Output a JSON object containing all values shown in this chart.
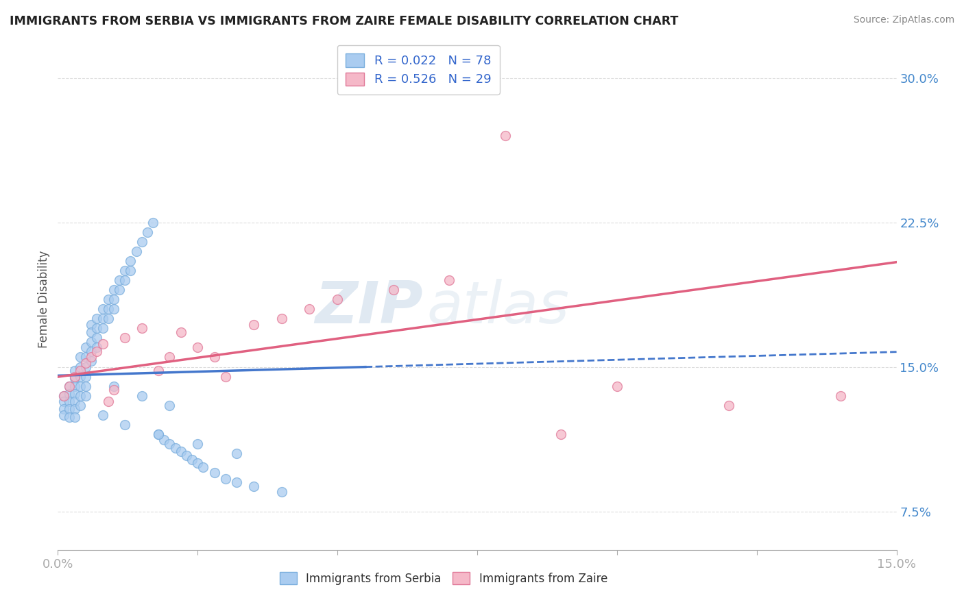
{
  "title": "IMMIGRANTS FROM SERBIA VS IMMIGRANTS FROM ZAIRE FEMALE DISABILITY CORRELATION CHART",
  "source_text": "Source: ZipAtlas.com",
  "ylabel": "Female Disability",
  "watermark_zip": "ZIP",
  "watermark_atlas": "atlas",
  "xlim": [
    0.0,
    0.15
  ],
  "ylim": [
    0.055,
    0.315
  ],
  "ytick_positions": [
    0.075,
    0.15,
    0.225,
    0.3
  ],
  "ytick_labels": [
    "7.5%",
    "15.0%",
    "22.5%",
    "30.0%"
  ],
  "serbia_color": "#aaccf0",
  "serbia_edge": "#7aaedd",
  "zaire_color": "#f5b8c8",
  "zaire_edge": "#e07898",
  "serbia_line_color": "#4477cc",
  "zaire_line_color": "#e06080",
  "serbia_R": 0.022,
  "serbia_N": 78,
  "zaire_R": 0.526,
  "zaire_N": 29,
  "serbia_scatter_x": [
    0.001,
    0.001,
    0.001,
    0.001,
    0.002,
    0.002,
    0.002,
    0.002,
    0.002,
    0.003,
    0.003,
    0.003,
    0.003,
    0.003,
    0.003,
    0.003,
    0.004,
    0.004,
    0.004,
    0.004,
    0.004,
    0.004,
    0.005,
    0.005,
    0.005,
    0.005,
    0.005,
    0.005,
    0.006,
    0.006,
    0.006,
    0.006,
    0.006,
    0.007,
    0.007,
    0.007,
    0.007,
    0.008,
    0.008,
    0.008,
    0.009,
    0.009,
    0.009,
    0.01,
    0.01,
    0.01,
    0.011,
    0.011,
    0.012,
    0.012,
    0.013,
    0.013,
    0.014,
    0.015,
    0.016,
    0.017,
    0.018,
    0.019,
    0.02,
    0.021,
    0.022,
    0.023,
    0.024,
    0.025,
    0.026,
    0.028,
    0.03,
    0.032,
    0.035,
    0.04,
    0.01,
    0.015,
    0.02,
    0.008,
    0.012,
    0.018,
    0.025,
    0.032
  ],
  "serbia_scatter_y": [
    0.135,
    0.132,
    0.128,
    0.125,
    0.14,
    0.136,
    0.132,
    0.128,
    0.124,
    0.148,
    0.144,
    0.14,
    0.136,
    0.132,
    0.128,
    0.124,
    0.155,
    0.15,
    0.145,
    0.14,
    0.135,
    0.13,
    0.16,
    0.155,
    0.15,
    0.145,
    0.14,
    0.135,
    0.172,
    0.168,
    0.163,
    0.158,
    0.153,
    0.175,
    0.17,
    0.165,
    0.16,
    0.18,
    0.175,
    0.17,
    0.185,
    0.18,
    0.175,
    0.19,
    0.185,
    0.18,
    0.195,
    0.19,
    0.2,
    0.195,
    0.205,
    0.2,
    0.21,
    0.215,
    0.22,
    0.225,
    0.115,
    0.112,
    0.11,
    0.108,
    0.106,
    0.104,
    0.102,
    0.1,
    0.098,
    0.095,
    0.092,
    0.09,
    0.088,
    0.085,
    0.14,
    0.135,
    0.13,
    0.125,
    0.12,
    0.115,
    0.11,
    0.105
  ],
  "zaire_scatter_x": [
    0.001,
    0.002,
    0.003,
    0.004,
    0.005,
    0.006,
    0.007,
    0.008,
    0.009,
    0.01,
    0.012,
    0.015,
    0.018,
    0.02,
    0.022,
    0.025,
    0.028,
    0.03,
    0.035,
    0.04,
    0.045,
    0.05,
    0.06,
    0.07,
    0.08,
    0.09,
    0.1,
    0.12,
    0.14
  ],
  "zaire_scatter_y": [
    0.135,
    0.14,
    0.145,
    0.148,
    0.152,
    0.155,
    0.158,
    0.162,
    0.132,
    0.138,
    0.165,
    0.17,
    0.148,
    0.155,
    0.168,
    0.16,
    0.155,
    0.145,
    0.172,
    0.175,
    0.18,
    0.185,
    0.19,
    0.195,
    0.27,
    0.115,
    0.14,
    0.13,
    0.135
  ],
  "grid_color": "#dddddd",
  "background_color": "#ffffff"
}
